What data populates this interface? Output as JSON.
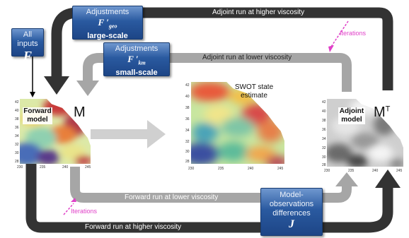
{
  "boxes": {
    "all_inputs": {
      "line1": "All inputs",
      "symbol": "F"
    },
    "adjust_geo": {
      "line1": "Adjustments",
      "symbol": "F ′",
      "sub": "geo",
      "line3": "large-scale"
    },
    "adjust_km": {
      "line1": "Adjustments",
      "symbol": "F ′",
      "sub": "km",
      "line3": "small-scale"
    },
    "model_obs": {
      "line1": "Model-",
      "line2": "observations",
      "line3": "differences",
      "symbol": "J"
    }
  },
  "panels": {
    "forward": {
      "label_line1": "Forward",
      "label_line2": "model",
      "symbol": "M"
    },
    "adjoint": {
      "label_line1": "Adjoint",
      "label_line2": "model",
      "symbol": "M",
      "superscript": "T"
    },
    "swot": {
      "label_line1": "SWOT state",
      "label_line2": "estimate"
    }
  },
  "arrows": {
    "adjoint_high": "Adjoint run at higher viscosity",
    "adjoint_low": "Adjoint run at lower viscosity",
    "forward_low": "Forward run at lower viscosity",
    "forward_high": "Forward run at higher viscosity",
    "iterations": "Iterations"
  },
  "axes": {
    "y_ticks": [
      "42",
      "40",
      "38",
      "36",
      "34",
      "32",
      "30",
      "28"
    ],
    "x_ticks": [
      "230",
      "235",
      "240",
      "245"
    ]
  },
  "colors": {
    "dark_arrow": "#333333",
    "light_arrow": "#a6a6a6",
    "box_blue": "#2a5aa0",
    "iteration_magenta": "#e040c8"
  }
}
